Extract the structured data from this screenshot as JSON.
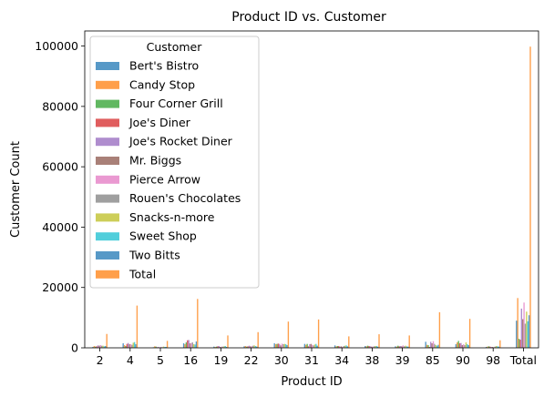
{
  "chart_data": {
    "type": "bar",
    "title": "Product ID vs. Customer",
    "xlabel": "Product ID",
    "ylabel": "Customer Count",
    "ylim": [
      0,
      105000
    ],
    "yticks": [
      0,
      20000,
      40000,
      60000,
      80000,
      100000
    ],
    "ytick_labels": [
      "0",
      "20000",
      "40000",
      "60000",
      "80000",
      "100000"
    ],
    "grid": false,
    "legend": {
      "title": "Customer",
      "placement": "upper-left"
    },
    "categories": [
      "2",
      "4",
      "5",
      "16",
      "19",
      "22",
      "30",
      "31",
      "34",
      "38",
      "39",
      "85",
      "90",
      "98",
      "Total"
    ],
    "series": [
      {
        "name": "Bert's Bistro",
        "color": "#1f77b4",
        "values": [
          300,
          1500,
          200,
          1500,
          400,
          500,
          1500,
          1300,
          800,
          600,
          500,
          2000,
          1200,
          300,
          9000
        ]
      },
      {
        "name": "Candy Stop",
        "color": "#ff7f0e",
        "values": [
          600,
          900,
          500,
          1200,
          300,
          600,
          1200,
          1000,
          500,
          500,
          400,
          1000,
          1800,
          400,
          16500
        ]
      },
      {
        "name": "Four Corner Grill",
        "color": "#2ca02c",
        "values": [
          400,
          600,
          400,
          1800,
          400,
          400,
          1300,
          1300,
          600,
          700,
          700,
          900,
          2300,
          500,
          3000
        ]
      },
      {
        "name": "Joe's Diner",
        "color": "#d62728",
        "values": [
          500,
          1300,
          200,
          2500,
          500,
          500,
          1400,
          500,
          600,
          600,
          500,
          300,
          1500,
          400,
          2700
        ]
      },
      {
        "name": "Joe's Rocket Diner",
        "color": "#9467bd",
        "values": [
          800,
          1600,
          300,
          2600,
          600,
          700,
          1300,
          1200,
          400,
          500,
          600,
          2000,
          1600,
          300,
          13000
        ]
      },
      {
        "name": "Mr. Biggs",
        "color": "#8c564b",
        "values": [
          700,
          1200,
          100,
          1500,
          300,
          500,
          800,
          1300,
          500,
          400,
          500,
          1500,
          900,
          300,
          9500
        ]
      },
      {
        "name": "Pierce Arrow",
        "color": "#e377c2",
        "values": [
          900,
          1200,
          300,
          1600,
          400,
          500,
          1400,
          1000,
          300,
          400,
          800,
          2200,
          1200,
          200,
          15000
        ]
      },
      {
        "name": "Rouen's Chocolates",
        "color": "#7f7f7f",
        "values": [
          700,
          1000,
          200,
          1800,
          400,
          700,
          1200,
          800,
          600,
          500,
          500,
          1300,
          900,
          400,
          8000
        ]
      },
      {
        "name": "Snacks-n-more",
        "color": "#bcbd22",
        "values": [
          700,
          1700,
          400,
          1200,
          500,
          800,
          1300,
          1100,
          700,
          600,
          700,
          900,
          1800,
          600,
          12000
        ]
      },
      {
        "name": "Sweet Shop",
        "color": "#17becf",
        "values": [
          500,
          1900,
          300,
          1100,
          600,
          600,
          1200,
          1300,
          800,
          600,
          500,
          700,
          1200,
          500,
          8800
        ]
      },
      {
        "name": "Two Bitts",
        "color": "#1f77b4",
        "values": [
          600,
          1200,
          300,
          2100,
          300,
          400,
          900,
          700,
          500,
          400,
          400,
          1000,
          900,
          400,
          10800
        ]
      },
      {
        "name": "Total",
        "color": "#ff7f0e",
        "values": [
          4600,
          14000,
          2300,
          16200,
          4100,
          5200,
          8700,
          9400,
          3800,
          4500,
          4100,
          11800,
          9600,
          2500,
          99800
        ]
      }
    ]
  }
}
